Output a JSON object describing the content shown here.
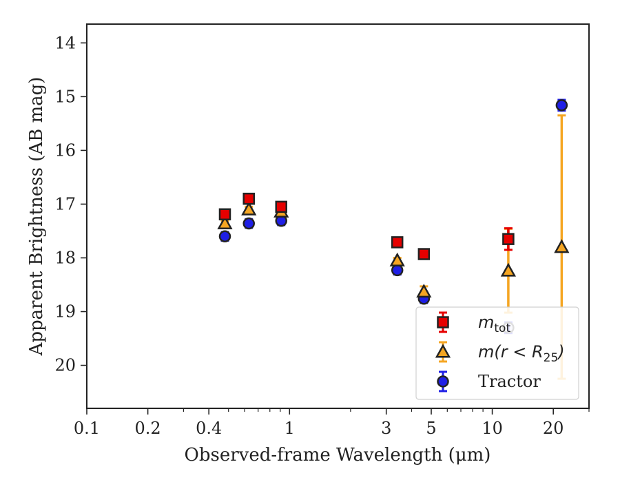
{
  "chart_data": {
    "type": "scatter",
    "xlabel": "Observed-frame Wavelength (μm)",
    "ylabel": "Apparent Brightness (AB mag)",
    "xscale": "log",
    "xlim": [
      0.1,
      30
    ],
    "ylim": [
      20.8,
      13.65
    ],
    "y_inverted": true,
    "x_ticks": [
      {
        "value": 0.1,
        "label": "0.1"
      },
      {
        "value": 0.2,
        "label": "0.2"
      },
      {
        "value": 0.4,
        "label": "0.4"
      },
      {
        "value": 1,
        "label": "1"
      },
      {
        "value": 3,
        "label": "3"
      },
      {
        "value": 5,
        "label": "5"
      },
      {
        "value": 10,
        "label": "10"
      },
      {
        "value": 20,
        "label": "20"
      }
    ],
    "y_ticks": [
      {
        "value": 14,
        "label": "14"
      },
      {
        "value": 15,
        "label": "15"
      },
      {
        "value": 16,
        "label": "16"
      },
      {
        "value": 17,
        "label": "17"
      },
      {
        "value": 18,
        "label": "18"
      },
      {
        "value": 19,
        "label": "19"
      },
      {
        "value": 20,
        "label": "20"
      }
    ],
    "legend_position": "bottom-right",
    "series": [
      {
        "id": "tractor",
        "legend_label": "Tractor",
        "marker": "circle",
        "color": "#1f1fe6",
        "points": [
          {
            "x": 0.48,
            "y": 17.6,
            "err": 0.08
          },
          {
            "x": 0.63,
            "y": 17.36,
            "err": 0.08
          },
          {
            "x": 0.91,
            "y": 17.31,
            "err": 0.08
          },
          {
            "x": 3.4,
            "y": 18.23,
            "err": 0.08
          },
          {
            "x": 4.6,
            "y": 18.76,
            "err": 0.08
          },
          {
            "x": 12.0,
            "y": 19.3,
            "err": 0.1
          },
          {
            "x": 22.0,
            "y": 15.16,
            "err": 0.1
          }
        ]
      },
      {
        "id": "mr25",
        "legend_label_base": "m(r < R",
        "legend_label_sub": "25",
        "legend_label_tail": ")",
        "marker": "triangle",
        "color": "#f5a623",
        "points": [
          {
            "x": 0.48,
            "y": 17.36,
            "err": 0.05
          },
          {
            "x": 0.63,
            "y": 17.1,
            "err": 0.05
          },
          {
            "x": 0.91,
            "y": 17.14,
            "err": 0.05
          },
          {
            "x": 3.4,
            "y": 18.05,
            "err": 0.05
          },
          {
            "x": 4.6,
            "y": 18.63,
            "err": 0.1
          },
          {
            "x": 12.0,
            "y": 18.24,
            "err": 0.78
          },
          {
            "x": 22.0,
            "y": 17.8,
            "err": 2.45
          }
        ]
      },
      {
        "id": "mtot",
        "legend_label_base": "m",
        "legend_label_sub": "tot",
        "marker": "square",
        "color": "#e60000",
        "points": [
          {
            "x": 0.48,
            "y": 17.19,
            "err": 0.05
          },
          {
            "x": 0.63,
            "y": 16.9,
            "err": 0.05
          },
          {
            "x": 0.91,
            "y": 17.05,
            "err": 0.05
          },
          {
            "x": 3.4,
            "y": 17.71,
            "err": 0.05
          },
          {
            "x": 4.6,
            "y": 17.93,
            "err": 0.05
          },
          {
            "x": 12.0,
            "y": 17.65,
            "err": 0.2
          }
        ]
      }
    ]
  }
}
